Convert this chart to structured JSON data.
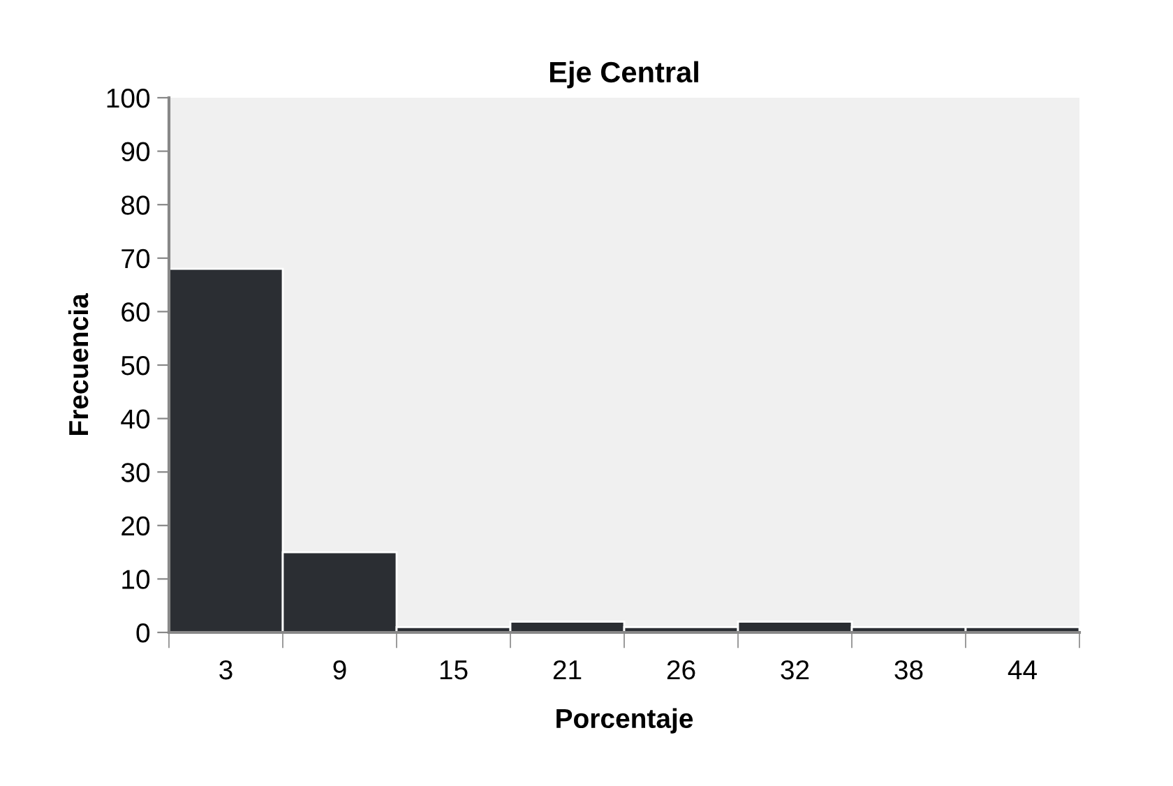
{
  "chart_data": {
    "type": "bar",
    "title": "Eje Central",
    "xlabel": "Porcentaje",
    "ylabel": "Frecuencia",
    "categories": [
      "3",
      "9",
      "15",
      "21",
      "26",
      "32",
      "38",
      "44"
    ],
    "values": [
      68,
      15,
      1,
      2,
      1,
      2,
      1,
      1
    ],
    "color": "#2b2e33",
    "ylim": [
      0,
      100
    ],
    "yticks": [
      0,
      10,
      20,
      30,
      40,
      50,
      60,
      70,
      80,
      90,
      100
    ],
    "grid": false,
    "legend": false
  }
}
